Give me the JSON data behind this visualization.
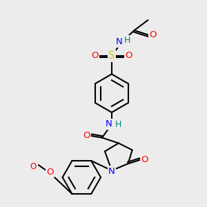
{
  "bg_color": "#ececec",
  "atom_colors": {
    "N": "#0000ff",
    "O": "#ff0000",
    "S": "#cccc00",
    "H": "#008080",
    "C": "#000000"
  },
  "bond_color": "#000000",
  "bond_width": 1.5,
  "font_size": 9.5
}
